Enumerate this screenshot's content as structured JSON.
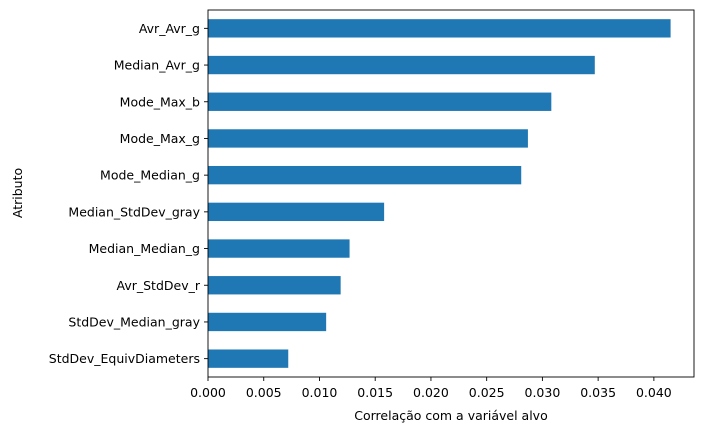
{
  "chart_data": {
    "type": "bar",
    "orientation": "horizontal",
    "title": "",
    "xlabel": "Correlação com a variável alvo",
    "ylabel": "Atributo",
    "categories": [
      "StdDev_EquivDiameters",
      "StdDev_Median_gray",
      "Avr_StdDev_r",
      "Median_Median_g",
      "Median_StdDev_gray",
      "Mode_Median_g",
      "Mode_Max_g",
      "Mode_Max_b",
      "Median_Avr_g",
      "Avr_Avr_g"
    ],
    "values": [
      0.0072,
      0.0106,
      0.0119,
      0.0127,
      0.0158,
      0.0281,
      0.0287,
      0.0308,
      0.0347,
      0.0415
    ],
    "xlim": [
      0.0,
      0.0436
    ],
    "xticks": [
      0.0,
      0.005,
      0.01,
      0.015,
      0.02,
      0.025,
      0.03,
      0.035,
      0.04
    ],
    "xtick_labels": [
      "0.000",
      "0.005",
      "0.010",
      "0.015",
      "0.020",
      "0.025",
      "0.030",
      "0.035",
      "0.040"
    ],
    "grid": false,
    "legend": "none",
    "bar_color": "#1f77b4"
  }
}
